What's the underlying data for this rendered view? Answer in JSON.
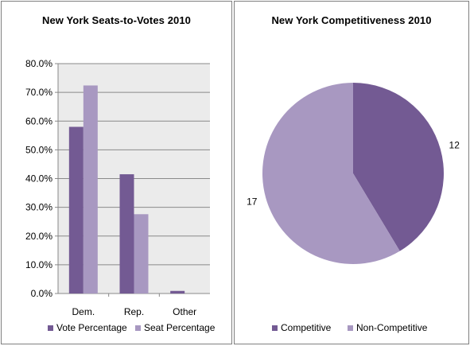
{
  "colors": {
    "dark": "#735a93",
    "light": "#a898c1",
    "plot_bg": "#ebebeb",
    "grid": "#8a8a8a"
  },
  "chart_data": [
    {
      "type": "bar",
      "title": "New York Seats-to-Votes 2010",
      "categories": [
        "Dem.",
        "Rep.",
        "Other"
      ],
      "series": [
        {
          "name": "Vote Percentage",
          "values": [
            58.0,
            41.5,
            0.9
          ]
        },
        {
          "name": "Seat Percentage",
          "values": [
            72.4,
            27.6,
            0.0
          ]
        }
      ],
      "ylim": [
        0,
        80
      ],
      "yticks": [
        "0.0%",
        "10.0%",
        "20.0%",
        "30.0%",
        "40.0%",
        "50.0%",
        "60.0%",
        "70.0%",
        "80.0%"
      ],
      "grid": true,
      "legend": "bottom"
    },
    {
      "type": "pie",
      "title": "New York Competitiveness 2010",
      "categories": [
        "Competitive",
        "Non-Competitive"
      ],
      "values": [
        12,
        17
      ],
      "data_labels": [
        "12",
        "17"
      ],
      "legend": "bottom"
    }
  ]
}
